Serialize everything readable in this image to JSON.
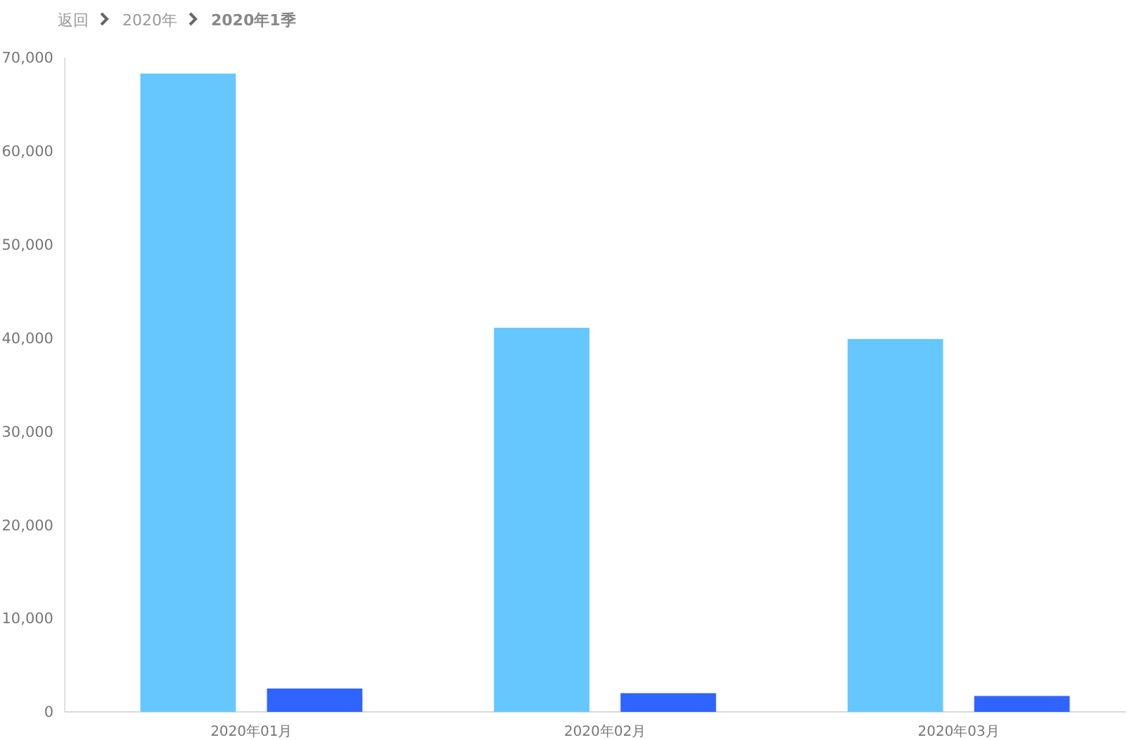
{
  "chart_data": {
    "type": "bar",
    "annotations": [
      "返回",
      "2020年",
      "2020年1季"
    ],
    "categories": [
      "2020年01月",
      "2020年02月",
      "2020年03月"
    ],
    "series": [
      {
        "color": "#66c7ff",
        "values": [
          68300,
          41100,
          39900
        ]
      },
      {
        "color": "#2f64ff",
        "values": [
          2500,
          2000,
          1700
        ]
      }
    ],
    "ylim": [
      0,
      70000
    ],
    "yticks": [
      {
        "value": 0,
        "label": "0"
      },
      {
        "value": 10000,
        "label": "10,000"
      },
      {
        "value": 20000,
        "label": "20,000"
      },
      {
        "value": 30000,
        "label": "30,000"
      },
      {
        "value": 40000,
        "label": "40,000"
      },
      {
        "value": 50000,
        "label": "50,000"
      },
      {
        "value": 60000,
        "label": "60,000"
      },
      {
        "value": 70000,
        "label": "70,000"
      }
    ],
    "grid": false
  }
}
